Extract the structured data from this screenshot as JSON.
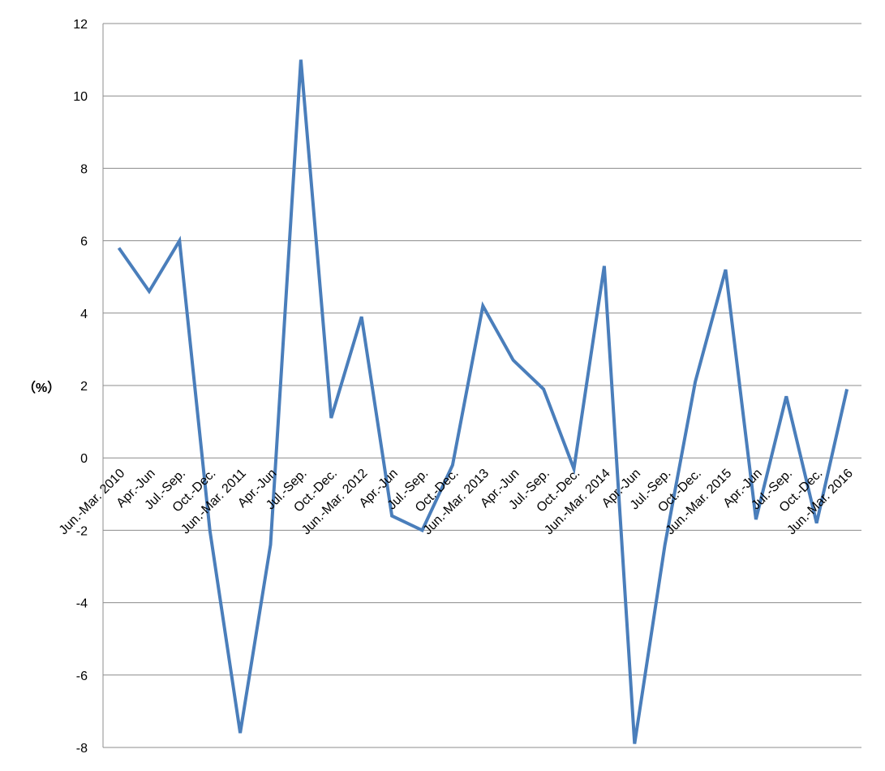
{
  "chart_data": {
    "type": "line",
    "title": "",
    "xlabel": "",
    "ylabel": "（%）",
    "ylim": [
      -8,
      12
    ],
    "yticks": [
      12,
      10,
      8,
      6,
      4,
      2,
      0,
      -2,
      -4,
      -6,
      -8
    ],
    "grid": true,
    "legend": "none",
    "categories": [
      "Jun.-Mar. 2010",
      "Apr.-Jun",
      "Jul.-Sep.",
      "Oct.-Dec.",
      "Jun.-Mar. 2011",
      "Apr.-Jun",
      "Jul.-Sep.",
      "Oct.-Dec.",
      "Jun.-Mar. 2012",
      "Apr.-Jun",
      "Jul.-Sep.",
      "Oct.-Dec.",
      "Jun.-Mar. 2013",
      "Apr.-Jun",
      "Jul.-Sep.",
      "Oct.-Dec.",
      "Jun.-Mar. 2014",
      "Apr.-Jun",
      "Jul.-Sep.",
      "Oct.-Dec.",
      "Jun.-Mar. 2015",
      "Apr.-Jun",
      "Jul.-Sep.",
      "Oct.-Dec.",
      "Jun.-Mar. 2016"
    ],
    "series": [
      {
        "values": [
          5.8,
          4.6,
          6.0,
          -2.0,
          -7.6,
          -2.4,
          11.0,
          1.1,
          3.9,
          -1.6,
          -2.0,
          -0.2,
          4.2,
          2.7,
          1.9,
          -0.3,
          5.3,
          -7.9,
          -2.4,
          2.1,
          5.2,
          -1.7,
          1.7,
          -1.8,
          1.9
        ],
        "color": "#4a7ebb"
      }
    ]
  }
}
